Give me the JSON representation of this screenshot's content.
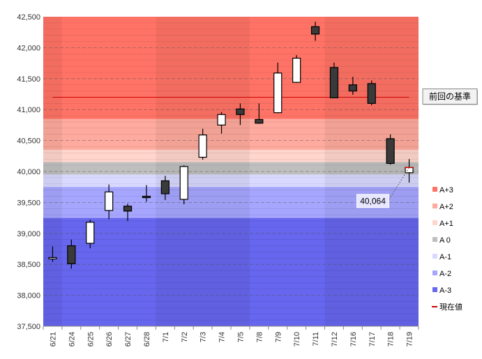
{
  "chart_data": {
    "type": "candlestick",
    "title": "",
    "xlabel": "",
    "ylabel": "",
    "ylim": [
      37500,
      42500
    ],
    "yticks": [
      37500,
      38000,
      38500,
      39000,
      39500,
      40000,
      40500,
      41000,
      41500,
      42000,
      42500
    ],
    "ytick_labels": [
      "37,500",
      "38,000",
      "38,500",
      "39,000",
      "39,500",
      "40,000",
      "40,500",
      "41,000",
      "41,500",
      "42,000",
      "42,500"
    ],
    "grid": "horizontal-dashed",
    "legend_position": "right",
    "categories": [
      "6/21",
      "6/24",
      "6/25",
      "6/26",
      "6/27",
      "6/28",
      "7/1",
      "7/2",
      "7/3",
      "7/4",
      "7/5",
      "7/8",
      "7/9",
      "7/10",
      "7/11",
      "7/12",
      "7/16",
      "7/17",
      "7/18",
      "7/19"
    ],
    "ohlc": [
      {
        "open": 38600,
        "high": 38790,
        "low": 38540,
        "close": 38610
      },
      {
        "open": 38800,
        "high": 38900,
        "low": 38430,
        "close": 38510
      },
      {
        "open": 38840,
        "high": 39220,
        "low": 38760,
        "close": 39180
      },
      {
        "open": 39370,
        "high": 39790,
        "low": 39230,
        "close": 39670
      },
      {
        "open": 39440,
        "high": 39480,
        "low": 39200,
        "close": 39360
      },
      {
        "open": 39600,
        "high": 39780,
        "low": 39510,
        "close": 39580
      },
      {
        "open": 39850,
        "high": 39930,
        "low": 39540,
        "close": 39640
      },
      {
        "open": 39550,
        "high": 40100,
        "low": 39470,
        "close": 40080
      },
      {
        "open": 40230,
        "high": 40690,
        "low": 40190,
        "close": 40590
      },
      {
        "open": 40750,
        "high": 40960,
        "low": 40610,
        "close": 40920
      },
      {
        "open": 41010,
        "high": 41100,
        "low": 40750,
        "close": 40920
      },
      {
        "open": 40840,
        "high": 41100,
        "low": 40770,
        "close": 40780
      },
      {
        "open": 40950,
        "high": 41760,
        "low": 40940,
        "close": 41590
      },
      {
        "open": 41440,
        "high": 41880,
        "low": 41430,
        "close": 41830
      },
      {
        "open": 42340,
        "high": 42420,
        "low": 42110,
        "close": 42220
      },
      {
        "open": 41680,
        "high": 41760,
        "low": 41190,
        "close": 41190
      },
      {
        "open": 41400,
        "high": 41530,
        "low": 41240,
        "close": 41300
      },
      {
        "open": 41420,
        "high": 41470,
        "low": 41070,
        "close": 41100
      },
      {
        "open": 40530,
        "high": 40600,
        "low": 40110,
        "close": 40130
      },
      {
        "open": 39980,
        "high": 40200,
        "low": 39820,
        "close": 40064
      }
    ],
    "bands": [
      {
        "name": "A+3",
        "from": 40850,
        "to": 42500,
        "color": "#ff7366"
      },
      {
        "name": "A+2",
        "from": 40350,
        "to": 40850,
        "color": "#ffaa9e"
      },
      {
        "name": "A+1",
        "from": 40150,
        "to": 40350,
        "color": "#ffd5cc"
      },
      {
        "name": "A 0",
        "from": 39950,
        "to": 40150,
        "color": "#bfbfbf"
      },
      {
        "name": "A-1",
        "from": 39750,
        "to": 39950,
        "color": "#d9d9ff"
      },
      {
        "name": "A-2",
        "from": 39250,
        "to": 39750,
        "color": "#a6a6ff"
      },
      {
        "name": "A-3",
        "from": 37500,
        "to": 39250,
        "color": "#6666ee"
      }
    ],
    "reference_line": {
      "label": "前回の基準",
      "value": 41200,
      "from_index": 0,
      "to_index": 19,
      "color": "#cc0000"
    },
    "current_value": {
      "label": "現在値",
      "value": 40064,
      "display": "40,064",
      "color": "#cc0000"
    },
    "legend": [
      {
        "label": "A+3",
        "color": "#ff7366"
      },
      {
        "label": "A+2",
        "color": "#ffaa9e"
      },
      {
        "label": "A+1",
        "color": "#ffd5cc"
      },
      {
        "label": "A 0",
        "color": "#bfbfbf"
      },
      {
        "label": "A-1",
        "color": "#d9d9ff"
      },
      {
        "label": "A-2",
        "color": "#a6a6ff"
      },
      {
        "label": "A-3",
        "color": "#6666ee"
      },
      {
        "label": "現在値",
        "color": "#cc0000",
        "kind": "line"
      }
    ]
  }
}
